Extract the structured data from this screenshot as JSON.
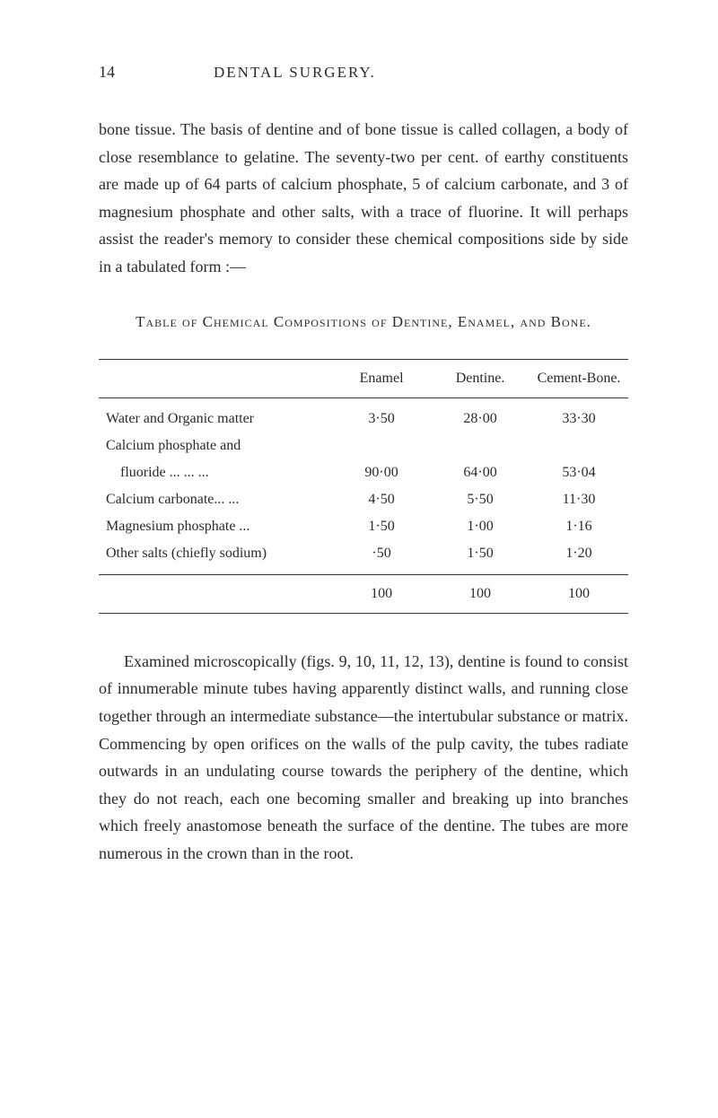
{
  "header": {
    "page_number": "14",
    "running_title": "DENTAL SURGERY."
  },
  "paragraph_1": "bone tissue. The basis of dentine and of bone tissue is called collagen, a body of close resemblance to gelatine. The seventy-two per cent. of earthy constituents are made up of 64 parts of calcium phosphate, 5 of calcium carbonate, and 3 of magnesium phosphate and other salts, with a trace of fluorine. It will perhaps assist the reader's memory to consider these chemical compositions side by side in a tabulated form :—",
  "table_title": "Table of Chemical Compositions of Dentine, Enamel, and Bone.",
  "table": {
    "columns": [
      "",
      "Enamel",
      "Dentine.",
      "Cement-Bone."
    ],
    "rows": [
      {
        "label": "Water and Organic matter",
        "enamel": "3·50",
        "dentine": "28·00",
        "cement": "33·30"
      },
      {
        "label": "Calcium phosphate and",
        "enamel": "",
        "dentine": "",
        "cement": ""
      },
      {
        "label": "fluoride   ...   ...   ...",
        "enamel": "90·00",
        "dentine": "64·00",
        "cement": "53·04",
        "indent": true
      },
      {
        "label": "Calcium carbonate...   ...",
        "enamel": "4·50",
        "dentine": "5·50",
        "cement": "11·30"
      },
      {
        "label": "Magnesium phosphate   ...",
        "enamel": "1·50",
        "dentine": "1·00",
        "cement": "1·16"
      },
      {
        "label": "Other salts (chiefly sodium)",
        "enamel": "·50",
        "dentine": "1·50",
        "cement": "1·20"
      }
    ],
    "totals": {
      "enamel": "100",
      "dentine": "100",
      "cement": "100"
    }
  },
  "paragraph_2": "Examined microscopically (figs. 9, 10, 11, 12, 13), dentine is found to consist of innumerable minute tubes having apparently distinct walls, and running close together through an intermediate substance—the intertubular substance or matrix. Commencing by open orifices on the walls of the pulp cavity, the tubes radiate outwards in an undulating course towards the periphery of the dentine, which they do not reach, each one becoming smaller and breaking up into branches which freely anastomose beneath the surface of the dentine. The tubes are more numerous in the crown than in the root."
}
